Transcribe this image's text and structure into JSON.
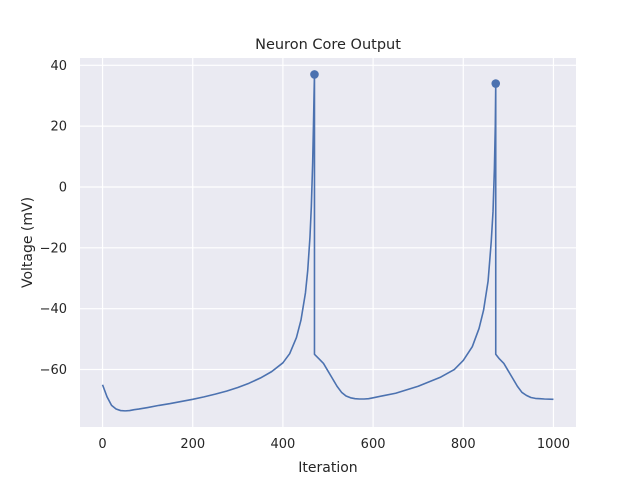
{
  "chart_data": {
    "type": "line",
    "title": "Neuron Core Output",
    "xlabel": "Iteration",
    "ylabel": "Voltage (mV)",
    "xlim": [
      -50,
      1050
    ],
    "ylim": [
      -78.9,
      42.4
    ],
    "xticks": [
      0,
      200,
      400,
      600,
      800,
      1000
    ],
    "yticks": [
      -60,
      -40,
      -20,
      0,
      20,
      40
    ],
    "grid": true,
    "legend": "none",
    "colors": {
      "background": "#eaeaf2",
      "grid": "#ffffff",
      "line": "#4c72b0",
      "text": "#262626"
    },
    "series": [
      {
        "x": [
          0,
          10,
          20,
          30,
          40,
          50,
          60,
          70,
          80,
          100,
          125,
          150,
          175,
          200,
          225,
          250,
          275,
          300,
          325,
          350,
          375,
          400,
          415,
          430,
          440,
          450,
          455,
          460,
          463,
          466,
          468,
          469,
          470,
          470.001,
          480,
          490,
          500,
          510,
          520,
          530,
          540,
          550,
          560,
          570,
          580,
          590,
          600,
          620,
          650,
          700,
          750,
          780,
          800,
          820,
          835,
          845,
          855,
          862,
          866,
          869,
          871,
          872,
          872.001,
          880,
          890,
          900,
          910,
          920,
          930,
          940,
          950,
          960,
          970,
          980,
          1000
        ],
        "y": [
          -65,
          -69,
          -71.8,
          -73,
          -73.5,
          -73.6,
          -73.5,
          -73.2,
          -73,
          -72.5,
          -71.8,
          -71.2,
          -70.5,
          -69.8,
          -69,
          -68.1,
          -67.1,
          -65.9,
          -64.5,
          -62.8,
          -60.7,
          -57.8,
          -54.8,
          -49.5,
          -43.8,
          -34.8,
          -27.5,
          -16.5,
          -6.5,
          8,
          22,
          30,
          37,
          -55,
          -56.5,
          -58,
          -60.5,
          -63,
          -65.5,
          -67.5,
          -68.7,
          -69.3,
          -69.6,
          -69.7,
          -69.7,
          -69.6,
          -69.3,
          -68.7,
          -67.8,
          -65.5,
          -62.5,
          -60,
          -57,
          -52.5,
          -46.5,
          -40.5,
          -31,
          -18,
          -8,
          6,
          20,
          34,
          -55,
          -56.5,
          -58,
          -60.5,
          -63,
          -65.5,
          -67.5,
          -68.5,
          -69.2,
          -69.5,
          -69.6,
          -69.7,
          -69.8
        ]
      }
    ],
    "markers": [
      {
        "x": 470,
        "y": 37
      },
      {
        "x": 872,
        "y": 34
      }
    ]
  }
}
